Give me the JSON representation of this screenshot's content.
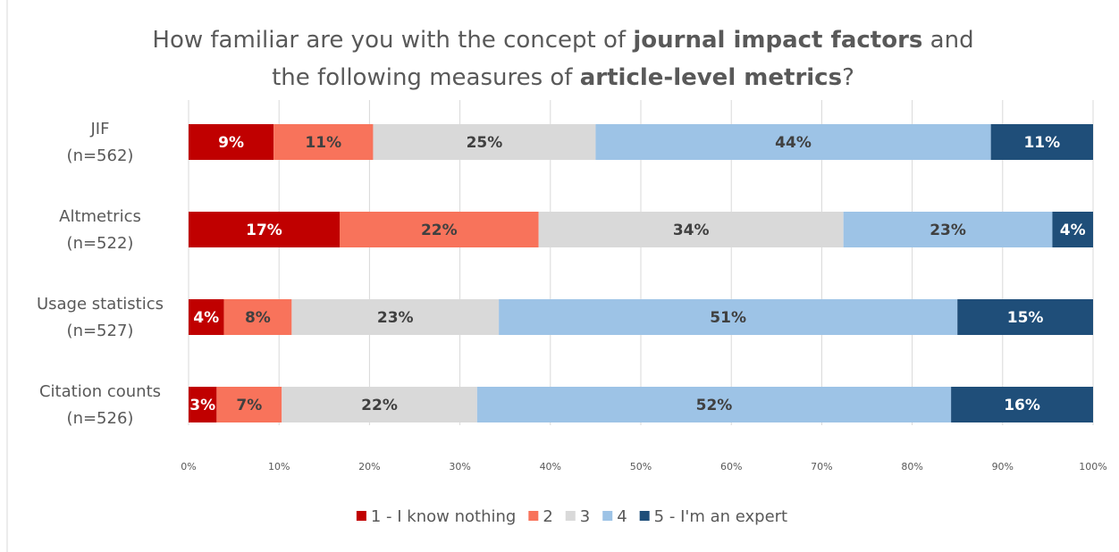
{
  "chart_data": {
    "type": "stacked-barh",
    "title": [
      "How familiar are you with the concept of ",
      "journal impact factors",
      " and",
      "the following measures of ",
      "article-level metrics",
      "?"
    ],
    "categories": [
      "JIF",
      "Altmetrics",
      "Usage statistics",
      "Citation counts"
    ],
    "n_labels": [
      "(n=562)",
      "(n=522)",
      "(n=527)",
      "(n=526)"
    ],
    "series": [
      {
        "name": "1 - I know nothing",
        "color": "#c00000",
        "label_color": "#ffffff",
        "values": [
          9.4,
          16.7,
          3.9,
          3.1
        ],
        "value_labels": [
          "9%",
          "17%",
          "4%",
          "3%"
        ]
      },
      {
        "name": "2",
        "color": "#f8735b",
        "label_color": "#404040",
        "values": [
          11.0,
          22.0,
          7.5,
          7.2
        ],
        "value_labels": [
          "11%",
          "22%",
          "8%",
          "7%"
        ]
      },
      {
        "name": "3",
        "color": "#d9d9d9",
        "label_color": "#404040",
        "values": [
          24.6,
          33.7,
          22.9,
          21.6
        ],
        "value_labels": [
          "25%",
          "34%",
          "23%",
          "22%"
        ]
      },
      {
        "name": "4",
        "color": "#9dc3e6",
        "label_color": "#404040",
        "values": [
          43.7,
          23.1,
          50.7,
          52.4
        ],
        "value_labels": [
          "44%",
          "23%",
          "51%",
          "52%"
        ]
      },
      {
        "name": "5 - I'm an expert",
        "color": "#1f4e79",
        "label_color": "#ffffff",
        "values": [
          11.3,
          4.5,
          15.0,
          15.7
        ],
        "value_labels": [
          "11%",
          "4%",
          "15%",
          "16%"
        ]
      }
    ],
    "xlim": [
      0,
      100
    ],
    "xticks": [
      {
        "value": 0,
        "label": "0%"
      },
      {
        "value": 10,
        "label": "10%"
      },
      {
        "value": 20,
        "label": "20%"
      },
      {
        "value": 30,
        "label": "30%"
      },
      {
        "value": 40,
        "label": "40%"
      },
      {
        "value": 50,
        "label": "50%"
      },
      {
        "value": 60,
        "label": "60%"
      },
      {
        "value": 70,
        "label": "70%"
      },
      {
        "value": 80,
        "label": "80%"
      },
      {
        "value": 90,
        "label": "90%"
      },
      {
        "value": 100,
        "label": "100%"
      }
    ],
    "grid": true,
    "legend": "bottom"
  }
}
